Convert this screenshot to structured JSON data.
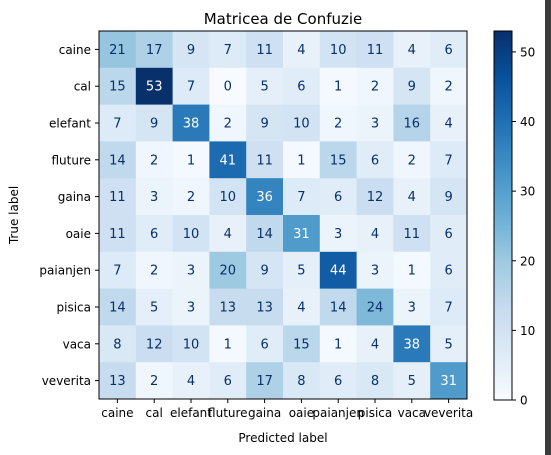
{
  "chart_data": {
    "type": "heatmap",
    "title": "Matricea de Confuzie",
    "xlabel": "Predicted label",
    "ylabel": "True label",
    "x_categories": [
      "caine",
      "cal",
      "elefant",
      "fluture",
      "gaina",
      "oaie",
      "paianjen",
      "pisica",
      "vaca",
      "veverita"
    ],
    "y_categories": [
      "caine",
      "cal",
      "elefant",
      "fluture",
      "gaina",
      "oaie",
      "paianjen",
      "pisica",
      "vaca",
      "veverita"
    ],
    "values": [
      [
        21,
        17,
        9,
        7,
        11,
        4,
        10,
        11,
        4,
        6
      ],
      [
        15,
        53,
        7,
        0,
        5,
        6,
        1,
        2,
        9,
        2
      ],
      [
        7,
        9,
        38,
        2,
        9,
        10,
        2,
        3,
        16,
        4
      ],
      [
        14,
        2,
        1,
        41,
        11,
        1,
        15,
        6,
        2,
        7
      ],
      [
        11,
        3,
        2,
        10,
        36,
        7,
        6,
        12,
        4,
        9
      ],
      [
        11,
        6,
        10,
        4,
        14,
        31,
        3,
        4,
        11,
        6
      ],
      [
        7,
        2,
        3,
        20,
        9,
        5,
        44,
        3,
        1,
        6
      ],
      [
        14,
        5,
        3,
        13,
        13,
        4,
        14,
        24,
        3,
        7
      ],
      [
        8,
        12,
        10,
        1,
        6,
        15,
        1,
        4,
        38,
        5
      ],
      [
        13,
        2,
        4,
        6,
        17,
        8,
        6,
        8,
        5,
        31
      ]
    ],
    "colormap": "Blues",
    "vmin": 0,
    "vmax": 53,
    "colorbar_ticks": [
      0,
      10,
      20,
      30,
      40,
      50
    ],
    "text_color_light": "#ffffff",
    "text_color_dark": "#08306b"
  }
}
